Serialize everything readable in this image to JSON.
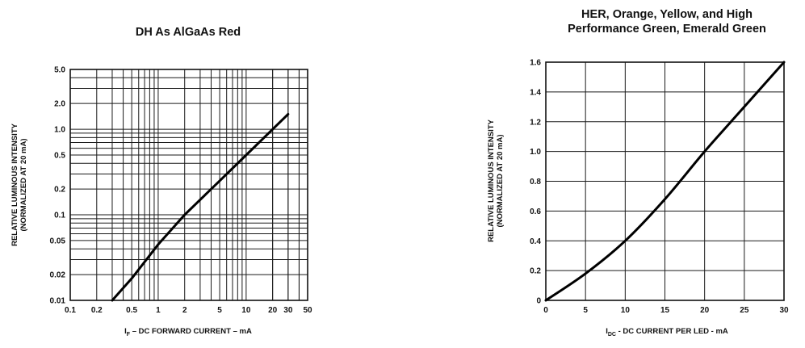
{
  "chart_data": [
    {
      "type": "line",
      "title": "DH As AlGaAs Red",
      "xlabel_main": "I",
      "xlabel_sub": "F",
      "xlabel_rest": " – DC FORWARD CURRENT – mA",
      "ylabel_line1": "RELATIVE LUMINOUS INTENSITY",
      "ylabel_line2": "(NORMALIZED AT 20 mA)",
      "x_scale": "log",
      "y_scale": "log",
      "xlim": [
        0.1,
        50
      ],
      "ylim": [
        0.01,
        5.0
      ],
      "x_ticks": [
        0.1,
        0.2,
        0.5,
        1,
        2,
        5,
        10,
        20,
        30,
        50
      ],
      "x_tick_labels": [
        "0.1",
        "0.2",
        "0.5",
        "1",
        "2",
        "5",
        "10",
        "20",
        "30",
        "50"
      ],
      "y_ticks": [
        0.01,
        0.02,
        0.05,
        0.1,
        0.2,
        0.5,
        1.0,
        2.0,
        5.0
      ],
      "y_tick_labels": [
        "0.01",
        "0.02",
        "0.05",
        "0.1",
        "0.2",
        "0.5",
        "1.0",
        "2.0",
        "5.0"
      ],
      "grid": true,
      "series": [
        {
          "x": [
            0.3,
            0.5,
            1,
            2,
            5,
            10,
            20,
            30
          ],
          "y": [
            0.01,
            0.018,
            0.045,
            0.1,
            0.25,
            0.5,
            1.0,
            1.5
          ]
        }
      ]
    },
    {
      "type": "line",
      "title_line1": "HER, Orange, Yellow, and High",
      "title_line2": "Performance Green, Emerald Green",
      "xlabel_main": "I",
      "xlabel_sub": "DC",
      "xlabel_rest": " - DC CURRENT PER LED - mA",
      "ylabel_line1": "RELATIVE LUMINOUS INTENSITY",
      "ylabel_line2": "(NORMALIZED AT 20 mA)",
      "x_scale": "linear",
      "y_scale": "linear",
      "xlim": [
        0,
        30
      ],
      "ylim": [
        0,
        1.6
      ],
      "x_ticks": [
        0,
        5,
        10,
        15,
        20,
        25,
        30
      ],
      "x_tick_labels": [
        "0",
        "5",
        "10",
        "15",
        "20",
        "25",
        "30"
      ],
      "y_ticks": [
        0,
        0.2,
        0.4,
        0.6,
        0.8,
        1.0,
        1.2,
        1.4,
        1.6
      ],
      "y_tick_labels": [
        "0",
        "0.2",
        "0.4",
        "0.6",
        "0.8",
        "1.0",
        "1.2",
        "1.4",
        "1.6"
      ],
      "grid": true,
      "series": [
        {
          "x": [
            0,
            5,
            10,
            15,
            20,
            25,
            30
          ],
          "y": [
            0,
            0.18,
            0.4,
            0.68,
            1.0,
            1.3,
            1.6
          ]
        }
      ]
    }
  ]
}
